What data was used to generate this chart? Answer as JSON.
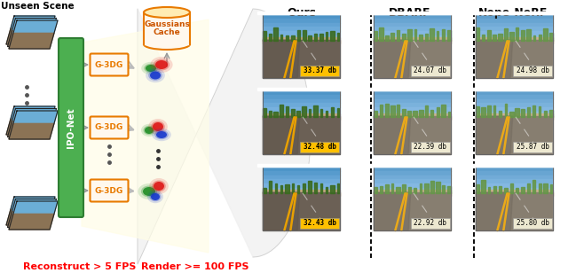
{
  "unseen_scene_label": "Unseen Scene",
  "ipo_net_label": "IPO-Net",
  "g3dg_label": "G-3DG",
  "gaussians_cache_line1": "Gaussians",
  "gaussians_cache_line2": "Cache",
  "reconstruct_text": "Reconstruct > 5 FPS",
  "render_text": "Render >= 100 FPS",
  "col_headers": [
    "Ours",
    "DBARF",
    "Nope-NeRF"
  ],
  "scores": [
    [
      "33.37 db",
      "24.07 db",
      "24.98 db"
    ],
    [
      "32.48 db",
      "22.39 db",
      "25.87 db"
    ],
    [
      "32.43 db",
      "22.92 db",
      "25.80 db"
    ]
  ],
  "score_bg_ours": "#FFC000",
  "score_bg_others": "#EDE8D0",
  "ipo_net_bg": "#4CAF50",
  "ipo_net_border": "#2E7D32",
  "g3dg_border": "#E87A00",
  "g3dg_bg": "#FFF8EE",
  "cache_border": "#E87A00",
  "cache_body_bg": "#FFF8EE",
  "cache_top_bg": "#FFECB3",
  "fan_bg": "#FFFDE7",
  "fan_border": "#E8DCA0",
  "big_fan_bg": "#F5F5F5",
  "reconstruct_color": "#FF0000",
  "render_color": "#FF0000",
  "dashed_line_color": "#111111",
  "blob_red": "#DD1111",
  "blob_green": "#1A8B20",
  "blob_blue": "#1133CC",
  "frame_sky": "#6BAED6",
  "frame_road": "#8B7355",
  "frame_border": "#222222",
  "arrow_color": "#AAAAAA",
  "road_sky1": "#5B9FD4",
  "road_sky2": "#87CEEB",
  "road_asphalt": "#6B5B45",
  "road_line": "#E8A000",
  "road_trees": "#3A6B20",
  "road_trees_blur": "#558B35"
}
